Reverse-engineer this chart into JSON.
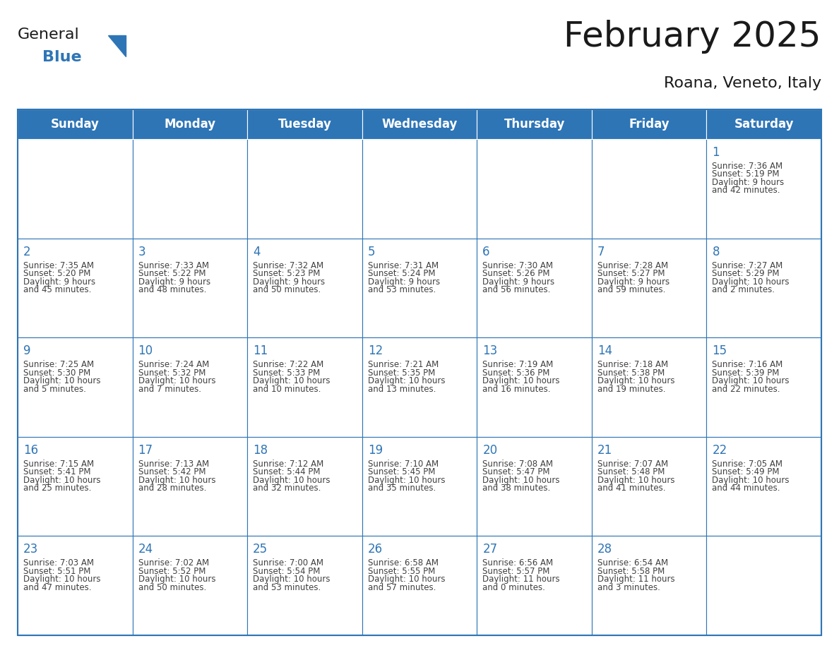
{
  "title": "February 2025",
  "subtitle": "Roana, Veneto, Italy",
  "header_bg_color": "#2E75B6",
  "header_text_color": "#FFFFFF",
  "cell_bg_color": "#FFFFFF",
  "cell_border_color": "#2E75B6",
  "day_number_color": "#2E75B6",
  "cell_text_color": "#404040",
  "background_color": "#FFFFFF",
  "days_of_week": [
    "Sunday",
    "Monday",
    "Tuesday",
    "Wednesday",
    "Thursday",
    "Friday",
    "Saturday"
  ],
  "weeks": [
    [
      {
        "day": "",
        "info": ""
      },
      {
        "day": "",
        "info": ""
      },
      {
        "day": "",
        "info": ""
      },
      {
        "day": "",
        "info": ""
      },
      {
        "day": "",
        "info": ""
      },
      {
        "day": "",
        "info": ""
      },
      {
        "day": "1",
        "info": "Sunrise: 7:36 AM\nSunset: 5:19 PM\nDaylight: 9 hours\nand 42 minutes."
      }
    ],
    [
      {
        "day": "2",
        "info": "Sunrise: 7:35 AM\nSunset: 5:20 PM\nDaylight: 9 hours\nand 45 minutes."
      },
      {
        "day": "3",
        "info": "Sunrise: 7:33 AM\nSunset: 5:22 PM\nDaylight: 9 hours\nand 48 minutes."
      },
      {
        "day": "4",
        "info": "Sunrise: 7:32 AM\nSunset: 5:23 PM\nDaylight: 9 hours\nand 50 minutes."
      },
      {
        "day": "5",
        "info": "Sunrise: 7:31 AM\nSunset: 5:24 PM\nDaylight: 9 hours\nand 53 minutes."
      },
      {
        "day": "6",
        "info": "Sunrise: 7:30 AM\nSunset: 5:26 PM\nDaylight: 9 hours\nand 56 minutes."
      },
      {
        "day": "7",
        "info": "Sunrise: 7:28 AM\nSunset: 5:27 PM\nDaylight: 9 hours\nand 59 minutes."
      },
      {
        "day": "8",
        "info": "Sunrise: 7:27 AM\nSunset: 5:29 PM\nDaylight: 10 hours\nand 2 minutes."
      }
    ],
    [
      {
        "day": "9",
        "info": "Sunrise: 7:25 AM\nSunset: 5:30 PM\nDaylight: 10 hours\nand 5 minutes."
      },
      {
        "day": "10",
        "info": "Sunrise: 7:24 AM\nSunset: 5:32 PM\nDaylight: 10 hours\nand 7 minutes."
      },
      {
        "day": "11",
        "info": "Sunrise: 7:22 AM\nSunset: 5:33 PM\nDaylight: 10 hours\nand 10 minutes."
      },
      {
        "day": "12",
        "info": "Sunrise: 7:21 AM\nSunset: 5:35 PM\nDaylight: 10 hours\nand 13 minutes."
      },
      {
        "day": "13",
        "info": "Sunrise: 7:19 AM\nSunset: 5:36 PM\nDaylight: 10 hours\nand 16 minutes."
      },
      {
        "day": "14",
        "info": "Sunrise: 7:18 AM\nSunset: 5:38 PM\nDaylight: 10 hours\nand 19 minutes."
      },
      {
        "day": "15",
        "info": "Sunrise: 7:16 AM\nSunset: 5:39 PM\nDaylight: 10 hours\nand 22 minutes."
      }
    ],
    [
      {
        "day": "16",
        "info": "Sunrise: 7:15 AM\nSunset: 5:41 PM\nDaylight: 10 hours\nand 25 minutes."
      },
      {
        "day": "17",
        "info": "Sunrise: 7:13 AM\nSunset: 5:42 PM\nDaylight: 10 hours\nand 28 minutes."
      },
      {
        "day": "18",
        "info": "Sunrise: 7:12 AM\nSunset: 5:44 PM\nDaylight: 10 hours\nand 32 minutes."
      },
      {
        "day": "19",
        "info": "Sunrise: 7:10 AM\nSunset: 5:45 PM\nDaylight: 10 hours\nand 35 minutes."
      },
      {
        "day": "20",
        "info": "Sunrise: 7:08 AM\nSunset: 5:47 PM\nDaylight: 10 hours\nand 38 minutes."
      },
      {
        "day": "21",
        "info": "Sunrise: 7:07 AM\nSunset: 5:48 PM\nDaylight: 10 hours\nand 41 minutes."
      },
      {
        "day": "22",
        "info": "Sunrise: 7:05 AM\nSunset: 5:49 PM\nDaylight: 10 hours\nand 44 minutes."
      }
    ],
    [
      {
        "day": "23",
        "info": "Sunrise: 7:03 AM\nSunset: 5:51 PM\nDaylight: 10 hours\nand 47 minutes."
      },
      {
        "day": "24",
        "info": "Sunrise: 7:02 AM\nSunset: 5:52 PM\nDaylight: 10 hours\nand 50 minutes."
      },
      {
        "day": "25",
        "info": "Sunrise: 7:00 AM\nSunset: 5:54 PM\nDaylight: 10 hours\nand 53 minutes."
      },
      {
        "day": "26",
        "info": "Sunrise: 6:58 AM\nSunset: 5:55 PM\nDaylight: 10 hours\nand 57 minutes."
      },
      {
        "day": "27",
        "info": "Sunrise: 6:56 AM\nSunset: 5:57 PM\nDaylight: 11 hours\nand 0 minutes."
      },
      {
        "day": "28",
        "info": "Sunrise: 6:54 AM\nSunset: 5:58 PM\nDaylight: 11 hours\nand 3 minutes."
      },
      {
        "day": "",
        "info": ""
      }
    ]
  ],
  "logo_text_general": "General",
  "logo_text_blue": "Blue",
  "logo_triangle_color": "#2E75B6",
  "logo_general_color": "#1A1A1A",
  "logo_blue_color": "#2E75B6",
  "title_fontsize": 36,
  "subtitle_fontsize": 16,
  "header_fontsize": 12,
  "day_number_fontsize": 12,
  "info_fontsize": 8.5,
  "logo_general_fontsize": 16,
  "logo_blue_fontsize": 16
}
